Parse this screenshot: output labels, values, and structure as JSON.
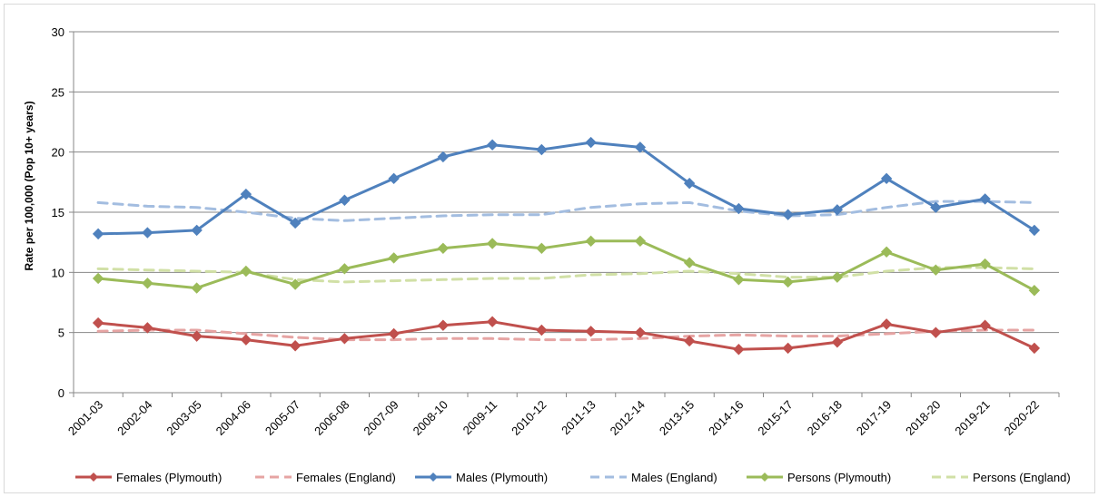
{
  "chart_data": {
    "type": "line",
    "title": "",
    "xlabel": "",
    "ylabel": "Rate per 100,000 (Pop 10+ years)",
    "ylim": [
      0,
      30
    ],
    "yticks": [
      0,
      5,
      10,
      15,
      20,
      25,
      30
    ],
    "grid": "horizontal",
    "legend_position": "bottom",
    "categories": [
      "2001-03",
      "2002-04",
      "2003-05",
      "2004-06",
      "2005-07",
      "2006-08",
      "2007-09",
      "2008-10",
      "2009-11",
      "2010-12",
      "2011-13",
      "2012-14",
      "2013-15",
      "2014-16",
      "2015-17",
      "2016-18",
      "2017-19",
      "2018-20",
      "2019-21",
      "2020-22"
    ],
    "series": [
      {
        "name": "Females (Plymouth)",
        "color": "#c0504d",
        "style": "solid",
        "marker": "diamond",
        "values": [
          5.8,
          5.4,
          4.7,
          4.4,
          3.9,
          4.5,
          4.9,
          5.6,
          5.9,
          5.2,
          5.1,
          5.0,
          4.3,
          3.6,
          3.7,
          4.2,
          5.7,
          5.0,
          5.6,
          3.7
        ]
      },
      {
        "name": "Females (England)",
        "color": "#e6a4a3",
        "style": "dashed",
        "marker": "none",
        "values": [
          5.1,
          5.2,
          5.2,
          4.9,
          4.6,
          4.4,
          4.4,
          4.5,
          4.5,
          4.4,
          4.4,
          4.5,
          4.7,
          4.8,
          4.7,
          4.7,
          4.9,
          5.1,
          5.2,
          5.2
        ]
      },
      {
        "name": "Males (Plymouth)",
        "color": "#4f81bd",
        "style": "solid",
        "marker": "diamond",
        "values": [
          13.2,
          13.3,
          13.5,
          16.5,
          14.1,
          16.0,
          17.8,
          19.6,
          20.6,
          20.2,
          20.8,
          20.4,
          17.4,
          15.3,
          14.8,
          15.2,
          17.8,
          15.4,
          16.1,
          13.5
        ]
      },
      {
        "name": "Males (England)",
        "color": "#a3bde0",
        "style": "dashed",
        "marker": "none",
        "values": [
          15.8,
          15.5,
          15.4,
          15.0,
          14.5,
          14.3,
          14.5,
          14.7,
          14.8,
          14.8,
          15.4,
          15.7,
          15.8,
          15.1,
          14.7,
          14.8,
          15.4,
          15.9,
          15.9,
          15.8
        ]
      },
      {
        "name": "Persons (Plymouth)",
        "color": "#9bbb59",
        "style": "solid",
        "marker": "diamond",
        "values": [
          9.5,
          9.1,
          8.7,
          10.1,
          9.0,
          10.3,
          11.2,
          12.0,
          12.4,
          12.0,
          12.6,
          12.6,
          10.8,
          9.4,
          9.2,
          9.6,
          11.7,
          10.2,
          10.7,
          8.5
        ]
      },
      {
        "name": "Persons (England)",
        "color": "#d1e0a6",
        "style": "dashed",
        "marker": "none",
        "values": [
          10.3,
          10.2,
          10.1,
          10.0,
          9.4,
          9.2,
          9.3,
          9.4,
          9.5,
          9.5,
          9.8,
          9.9,
          10.1,
          9.9,
          9.6,
          9.6,
          10.1,
          10.4,
          10.4,
          10.3
        ]
      }
    ]
  }
}
